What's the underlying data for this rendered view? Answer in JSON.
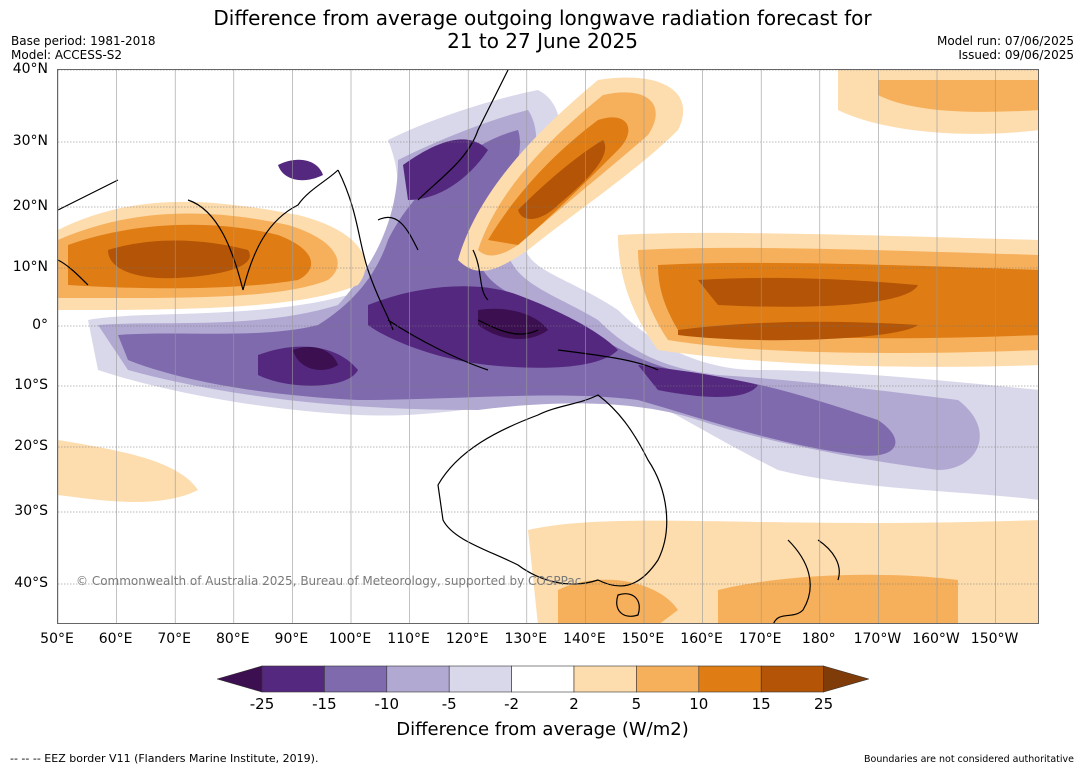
{
  "title": {
    "line1": "Difference from average outgoing longwave radiation forecast for",
    "line2": "21 to 27 June 2025"
  },
  "meta_left": {
    "base_period": "Base period: 1981-2018",
    "model": "Model: ACCESS-S2"
  },
  "meta_right": {
    "model_run": "Model run: 07/06/2025",
    "issued": "Issued: 09/06/2025"
  },
  "lat_labels": [
    "40°N",
    "30°N",
    "20°N",
    "10°N",
    "0°",
    "10°S",
    "20°S",
    "30°S",
    "40°S"
  ],
  "lon_labels": [
    "50°E",
    "60°E",
    "70°E",
    "80°E",
    "90°E",
    "100°E",
    "110°E",
    "120°E",
    "130°E",
    "140°E",
    "150°E",
    "160°E",
    "170°E",
    "180°",
    "170°W",
    "160°W",
    "150°W"
  ],
  "copyright": "© Commonwealth of Australia 2025, Bureau of Meteorology, supported by COSPPac",
  "colorbar": {
    "title": "Difference from average (W/m2)",
    "ticks": [
      "-25",
      "-15",
      "-10",
      "-5",
      "-2",
      "2",
      "5",
      "10",
      "15",
      "25"
    ],
    "colors": [
      "#3b0f50",
      "#54287f",
      "#7e6aad",
      "#b2a9d2",
      "#d9d8ea",
      "#ffffff",
      "#fddcae",
      "#f6b05b",
      "#df7d14",
      "#b35406",
      "#7f3b08"
    ]
  },
  "footer": {
    "left": "--  --  -- EEZ border V11 (Flanders Marine Institute, 2019).",
    "right": "Boundaries are not considered authoritative"
  }
}
